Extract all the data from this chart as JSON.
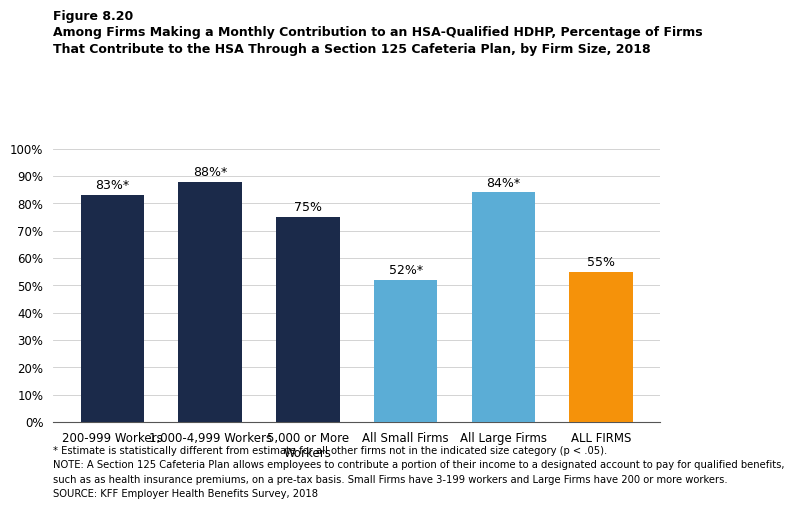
{
  "categories": [
    "200-999 Workers",
    "1,000-4,999 Workers",
    "5,000 or More\nWorkers",
    "All Small Firms",
    "All Large Firms",
    "ALL FIRMS"
  ],
  "values": [
    83,
    88,
    75,
    52,
    84,
    55
  ],
  "labels": [
    "83%*",
    "88%*",
    "75%",
    "52%*",
    "84%*",
    "55%"
  ],
  "bar_colors": [
    "#1b2a4a",
    "#1b2a4a",
    "#1b2a4a",
    "#5badd6",
    "#5badd6",
    "#f5920a"
  ],
  "figure_label": "Figure 8.20",
  "title_line1": "Among Firms Making a Monthly Contribution to an HSA-Qualified HDHP, Percentage of Firms",
  "title_line2": "That Contribute to the HSA Through a Section 125 Cafeteria Plan, by Firm Size, 2018",
  "ylim": [
    0,
    100
  ],
  "yticks": [
    0,
    10,
    20,
    30,
    40,
    50,
    60,
    70,
    80,
    90,
    100
  ],
  "ytick_labels": [
    "0%",
    "10%",
    "20%",
    "30%",
    "40%",
    "50%",
    "60%",
    "70%",
    "80%",
    "90%",
    "100%"
  ],
  "footnote1": "* Estimate is statistically different from estimate for all other firms not in the indicated size category (p < .05).",
  "footnote2": "NOTE: A Section 125 Cafeteria Plan allows employees to contribute a portion of their income to a designated account to pay for qualified benefits,",
  "footnote3": "such as as health insurance premiums, on a pre-tax basis. Small Firms have 3-199 workers and Large Firms have 200 or more workers.",
  "footnote4": "SOURCE: KFF Employer Health Benefits Survey, 2018",
  "background_color": "#ffffff",
  "bar_width": 0.65
}
